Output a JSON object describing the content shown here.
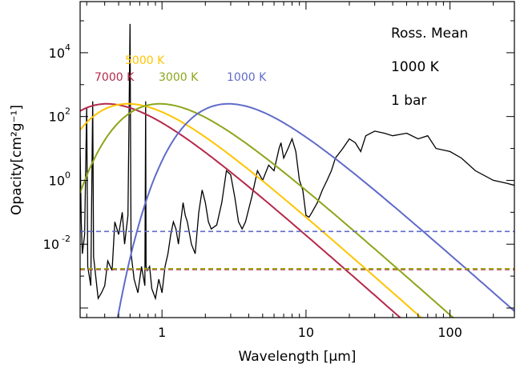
{
  "chart_data": {
    "type": "line",
    "xlabel": "Wavelength [μm]",
    "ylabel": "Opacity[cm²g⁻¹]",
    "xscale": "log",
    "yscale": "log",
    "xlim": [
      0.27,
      280
    ],
    "ylim": [
      5e-05,
      400000
    ],
    "xticks": [
      {
        "v": 1,
        "label": "1"
      },
      {
        "v": 10,
        "label": "10"
      },
      {
        "v": 100,
        "label": "100"
      }
    ],
    "yticks": [
      {
        "v": 0.01,
        "base": "10",
        "exp": "-2"
      },
      {
        "v": 1,
        "base": "10",
        "exp": "0"
      },
      {
        "v": 100,
        "base": "10",
        "exp": "2"
      },
      {
        "v": 10000,
        "base": "10",
        "exp": "4"
      }
    ],
    "annotations": [
      "Ross. Mean",
      "1000 K",
      "1 bar"
    ],
    "grid": false,
    "series": [
      {
        "name": "7000 K",
        "color": "#b5294a",
        "Teff": 7000,
        "peak_um": 0.55,
        "peak": 250,
        "mean_opacity": 0.0016
      },
      {
        "name": "5000 K",
        "color": "#ffc400",
        "Teff": 5000,
        "peak_um": 0.67,
        "peak": 250,
        "mean_opacity": 0.0017
      },
      {
        "name": "3000 K",
        "color": "#8ca61a",
        "Teff": 3000,
        "peak_um": 1.3,
        "peak": 250,
        "mean_opacity": 0.0017
      },
      {
        "name": "1000 K",
        "color": "#5f6bc9",
        "Teff": 1000,
        "peak_um": 3.8,
        "peak": 250,
        "mean_opacity": 0.025
      }
    ],
    "opacity_spectrum": {
      "color": "#000000",
      "points": [
        [
          0.27,
          10
        ],
        [
          0.275,
          0.05
        ],
        [
          0.28,
          0.005
        ],
        [
          0.29,
          0.02
        ],
        [
          0.3,
          200
        ],
        [
          0.305,
          0.002
        ],
        [
          0.32,
          0.0005
        ],
        [
          0.33,
          300
        ],
        [
          0.335,
          0.004
        ],
        [
          0.36,
          0.0002
        ],
        [
          0.38,
          0.0003
        ],
        [
          0.4,
          0.0005
        ],
        [
          0.42,
          0.003
        ],
        [
          0.45,
          0.0015
        ],
        [
          0.47,
          0.05
        ],
        [
          0.5,
          0.02
        ],
        [
          0.53,
          0.1
        ],
        [
          0.55,
          0.01
        ],
        [
          0.58,
          0.08
        ],
        [
          0.6,
          80000
        ],
        [
          0.61,
          0.005
        ],
        [
          0.64,
          0.0008
        ],
        [
          0.68,
          0.0003
        ],
        [
          0.72,
          0.002
        ],
        [
          0.76,
          0.0005
        ],
        [
          0.77,
          300
        ],
        [
          0.775,
          0.002
        ],
        [
          0.79,
          0.0015
        ],
        [
          0.82,
          0.002
        ],
        [
          0.85,
          0.0004
        ],
        [
          0.9,
          0.0002
        ],
        [
          0.95,
          0.0008
        ],
        [
          1.0,
          0.0003
        ],
        [
          1.05,
          0.002
        ],
        [
          1.1,
          0.005
        ],
        [
          1.15,
          0.02
        ],
        [
          1.2,
          0.05
        ],
        [
          1.25,
          0.03
        ],
        [
          1.3,
          0.01
        ],
        [
          1.35,
          0.05
        ],
        [
          1.4,
          0.2
        ],
        [
          1.45,
          0.08
        ],
        [
          1.5,
          0.05
        ],
        [
          1.6,
          0.01
        ],
        [
          1.7,
          0.005
        ],
        [
          1.8,
          0.1
        ],
        [
          1.9,
          0.5
        ],
        [
          2.0,
          0.2
        ],
        [
          2.1,
          0.05
        ],
        [
          2.2,
          0.03
        ],
        [
          2.4,
          0.04
        ],
        [
          2.6,
          0.2
        ],
        [
          2.8,
          2
        ],
        [
          3.0,
          1.5
        ],
        [
          3.2,
          0.3
        ],
        [
          3.4,
          0.05
        ],
        [
          3.6,
          0.03
        ],
        [
          3.8,
          0.05
        ],
        [
          4.2,
          0.3
        ],
        [
          4.6,
          2
        ],
        [
          5.0,
          1
        ],
        [
          5.5,
          3
        ],
        [
          6.0,
          2
        ],
        [
          6.5,
          10
        ],
        [
          6.7,
          15
        ],
        [
          7.0,
          5
        ],
        [
          7.5,
          10
        ],
        [
          8.0,
          20
        ],
        [
          8.5,
          8
        ],
        [
          9.0,
          1
        ],
        [
          9.5,
          0.5
        ],
        [
          10.0,
          0.08
        ],
        [
          10.5,
          0.07
        ],
        [
          11.0,
          0.1
        ],
        [
          12.0,
          0.2
        ],
        [
          13.0,
          0.5
        ],
        [
          14.0,
          1
        ],
        [
          15.0,
          2
        ],
        [
          16.0,
          5
        ],
        [
          18.0,
          10
        ],
        [
          20.0,
          20
        ],
        [
          22.0,
          15
        ],
        [
          24.0,
          8
        ],
        [
          26.0,
          25
        ],
        [
          30.0,
          35
        ],
        [
          35.0,
          30
        ],
        [
          40.0,
          25
        ],
        [
          50.0,
          30
        ],
        [
          60.0,
          20
        ],
        [
          70.0,
          25
        ],
        [
          80.0,
          10
        ],
        [
          100.0,
          8
        ],
        [
          120.0,
          5
        ],
        [
          150.0,
          2
        ],
        [
          200.0,
          1
        ],
        [
          250.0,
          0.8
        ],
        [
          280.0,
          0.7
        ]
      ]
    }
  }
}
